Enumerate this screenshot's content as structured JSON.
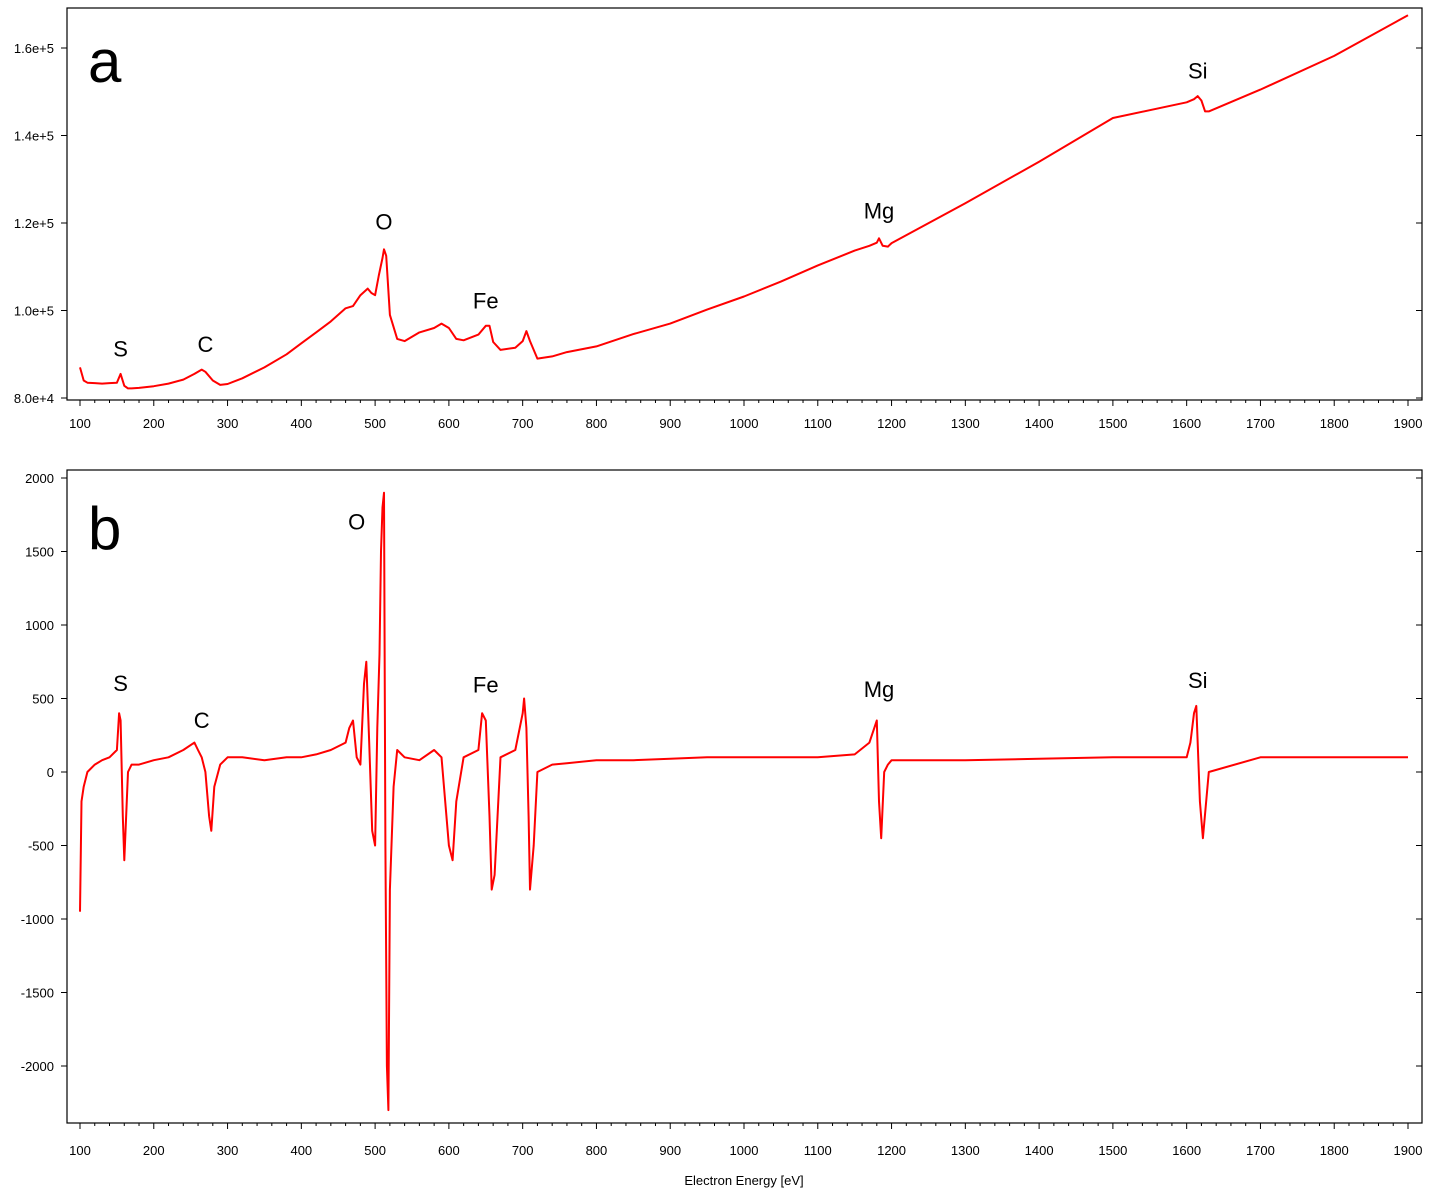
{
  "chart_data": [
    {
      "type": "line",
      "panel_label": "a",
      "xlim": [
        100,
        1900
      ],
      "ylim": [
        80000,
        168000
      ],
      "x_ticks": [
        100,
        200,
        300,
        400,
        500,
        600,
        700,
        800,
        900,
        1000,
        1100,
        1200,
        1300,
        1400,
        1500,
        1600,
        1700,
        1800,
        1900
      ],
      "y_ticks": [
        80000,
        100000,
        120000,
        140000,
        160000
      ],
      "y_tick_labels": [
        "8.0e+4",
        "1.0e+5",
        "1.2e+5",
        "1.4e+5",
        "1.6e+5"
      ],
      "xlabel": "",
      "ylabel": "",
      "color": "#ff0000",
      "series": [
        {
          "x": [
            100,
            105,
            110,
            120,
            130,
            140,
            150,
            155,
            160,
            165,
            170,
            180,
            200,
            220,
            240,
            255,
            265,
            270,
            280,
            290,
            300,
            320,
            350,
            380,
            400,
            420,
            440,
            460,
            470,
            480,
            490,
            495,
            500,
            505,
            510,
            512,
            515,
            520,
            530,
            540,
            560,
            580,
            590,
            600,
            610,
            620,
            640,
            650,
            655,
            660,
            670,
            690,
            700,
            705,
            710,
            720,
            740,
            760,
            800,
            850,
            900,
            950,
            1000,
            1050,
            1100,
            1150,
            1170,
            1180,
            1183,
            1188,
            1195,
            1200,
            1300,
            1400,
            1500,
            1600,
            1610,
            1615,
            1620,
            1625,
            1630,
            1700,
            1800,
            1900
          ],
          "y": [
            87000,
            84000,
            83500,
            83400,
            83300,
            83400,
            83500,
            85500,
            82800,
            82200,
            82200,
            82300,
            82700,
            83300,
            84200,
            85500,
            86500,
            86000,
            84000,
            83000,
            83200,
            84500,
            87000,
            90000,
            92500,
            95000,
            97500,
            100500,
            101000,
            103500,
            105000,
            104000,
            103500,
            108000,
            112000,
            114000,
            112500,
            99000,
            93500,
            93000,
            95000,
            96000,
            97000,
            96000,
            93500,
            93200,
            94500,
            96500,
            96500,
            92800,
            91000,
            91500,
            93000,
            95300,
            93000,
            89000,
            89500,
            90500,
            91800,
            94600,
            97000,
            100200,
            103200,
            106600,
            110300,
            113700,
            114800,
            115500,
            116500,
            114800,
            114600,
            115400,
            124500,
            134000,
            144000,
            147600,
            148300,
            149000,
            148000,
            145500,
            145500,
            150500,
            158200,
            167500
          ]
        }
      ],
      "annotations": [
        {
          "text": "S",
          "x": 155,
          "y": 89500
        },
        {
          "text": "C",
          "x": 270,
          "y": 90500
        },
        {
          "text": "O",
          "x": 512,
          "y": 118500
        },
        {
          "text": "Fe",
          "x": 650,
          "y": 100500
        },
        {
          "text": "Mg",
          "x": 1183,
          "y": 121000
        },
        {
          "text": "Si",
          "x": 1615,
          "y": 153000
        }
      ]
    },
    {
      "type": "line",
      "panel_label": "b",
      "xlim": [
        100,
        1900
      ],
      "ylim": [
        -2400,
        2000
      ],
      "x_ticks": [
        100,
        200,
        300,
        400,
        500,
        600,
        700,
        800,
        900,
        1000,
        1100,
        1200,
        1300,
        1400,
        1500,
        1600,
        1700,
        1800,
        1900
      ],
      "y_ticks": [
        2000,
        1500,
        1000,
        500,
        0,
        -500,
        -1000,
        -1500,
        -2000
      ],
      "y_tick_labels": [
        "2000",
        "1500",
        "1000",
        "500",
        "0",
        "-500",
        "-1000",
        "-1500",
        "-2000"
      ],
      "xlabel": "Electron Energy [eV]",
      "ylabel": "",
      "color": "#ff0000",
      "series": [
        {
          "x": [
            100,
            102,
            105,
            110,
            120,
            130,
            140,
            150,
            153,
            155,
            158,
            160,
            165,
            170,
            180,
            200,
            220,
            240,
            255,
            260,
            265,
            270,
            275,
            278,
            282,
            290,
            300,
            320,
            350,
            380,
            400,
            420,
            440,
            460,
            465,
            470,
            475,
            480,
            485,
            488,
            492,
            496,
            500,
            503,
            506,
            508,
            510,
            512,
            514,
            516,
            518,
            520,
            525,
            530,
            540,
            560,
            580,
            590,
            595,
            600,
            605,
            610,
            620,
            640,
            645,
            650,
            655,
            658,
            662,
            670,
            690,
            700,
            702,
            705,
            708,
            710,
            715,
            720,
            740,
            760,
            800,
            850,
            900,
            950,
            1000,
            1050,
            1100,
            1150,
            1170,
            1180,
            1183,
            1186,
            1190,
            1195,
            1200,
            1300,
            1400,
            1500,
            1600,
            1605,
            1610,
            1613,
            1618,
            1622,
            1630,
            1700,
            1800,
            1900
          ],
          "y": [
            -950,
            -200,
            -100,
            0,
            50,
            80,
            100,
            150,
            400,
            350,
            -300,
            -600,
            0,
            50,
            50,
            80,
            100,
            150,
            200,
            150,
            100,
            0,
            -300,
            -400,
            -100,
            50,
            100,
            100,
            80,
            100,
            100,
            120,
            150,
            200,
            300,
            350,
            100,
            50,
            600,
            750,
            200,
            -400,
            -500,
            300,
            800,
            1500,
            1800,
            1900,
            -500,
            -2000,
            -2300,
            -800,
            -100,
            150,
            100,
            80,
            150,
            100,
            -200,
            -500,
            -600,
            -200,
            100,
            150,
            400,
            350,
            -300,
            -800,
            -700,
            100,
            150,
            400,
            500,
            300,
            -300,
            -800,
            -500,
            0,
            50,
            60,
            80,
            80,
            90,
            100,
            100,
            100,
            100,
            120,
            200,
            350,
            -200,
            -450,
            0,
            50,
            80,
            80,
            90,
            100,
            100,
            200,
            400,
            450,
            -200,
            -450,
            0,
            100,
            100,
            100
          ]
        }
      ],
      "annotations": [
        {
          "text": "S",
          "x": 155,
          "y": 550
        },
        {
          "text": "C",
          "x": 265,
          "y": 300
        },
        {
          "text": "O",
          "x": 475,
          "y": 1650
        },
        {
          "text": "Fe",
          "x": 650,
          "y": 540
        },
        {
          "text": "Mg",
          "x": 1183,
          "y": 510
        },
        {
          "text": "Si",
          "x": 1615,
          "y": 570
        }
      ]
    }
  ]
}
